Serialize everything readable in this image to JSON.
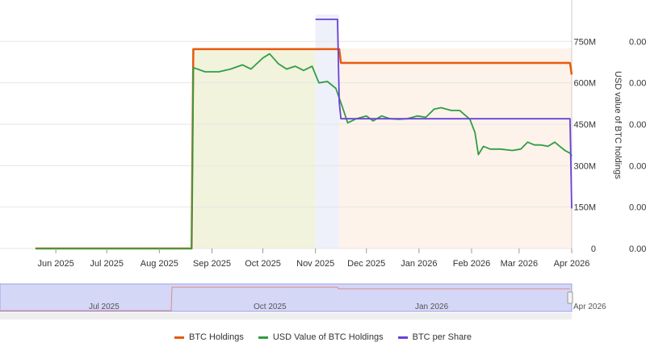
{
  "chart_data": {
    "type": "line",
    "x_ticks": [
      "Jun 2025",
      "Jul 2025",
      "Aug 2025",
      "Sep 2025",
      "Oct 2025",
      "Nov 2025",
      "Dec 2025",
      "Jan 2026",
      "Feb 2026",
      "Mar 2026",
      "Apr 2026"
    ],
    "left_axis_ticks": [],
    "usd_axis": {
      "label": "USD value of BTC holdings",
      "ticks": [
        "0",
        "150M",
        "300M",
        "450M",
        "600M",
        "750M"
      ],
      "ylim": [
        0,
        900
      ]
    },
    "btc_per_share_axis": {
      "ticks": [
        "0.00",
        "0.00",
        "0.00",
        "0.00",
        "0.00",
        "0.00"
      ]
    },
    "series": [
      {
        "name": "BTC Holdings",
        "color": "#e8590c",
        "points": [
          [
            "2025-05-20",
            0
          ],
          [
            "2025-08-20",
            0
          ],
          [
            "2025-08-21",
            722
          ],
          [
            "2025-11-15",
            722
          ],
          [
            "2025-11-16",
            672
          ],
          [
            "2026-03-31",
            672
          ],
          [
            "2026-04-01",
            630
          ]
        ]
      },
      {
        "name": "USD Value of BTC Holdings",
        "color": "#2f9e44",
        "points": [
          [
            "2025-05-20",
            0
          ],
          [
            "2025-08-20",
            0
          ],
          [
            "2025-08-21",
            655
          ],
          [
            "2025-08-28",
            640
          ],
          [
            "2025-09-05",
            640
          ],
          [
            "2025-09-12",
            650
          ],
          [
            "2025-09-19",
            665
          ],
          [
            "2025-09-24",
            650
          ],
          [
            "2025-10-01",
            690
          ],
          [
            "2025-10-05",
            705
          ],
          [
            "2025-10-10",
            670
          ],
          [
            "2025-10-15",
            650
          ],
          [
            "2025-10-20",
            660
          ],
          [
            "2025-10-25",
            645
          ],
          [
            "2025-10-30",
            660
          ],
          [
            "2025-11-03",
            600
          ],
          [
            "2025-11-08",
            605
          ],
          [
            "2025-11-13",
            580
          ],
          [
            "2025-11-17",
            510
          ],
          [
            "2025-11-20",
            455
          ],
          [
            "2025-11-25",
            470
          ],
          [
            "2025-12-01",
            480
          ],
          [
            "2025-12-05",
            462
          ],
          [
            "2025-12-10",
            480
          ],
          [
            "2025-12-15",
            470
          ],
          [
            "2025-12-20",
            468
          ],
          [
            "2025-12-25",
            470
          ],
          [
            "2025-12-31",
            480
          ],
          [
            "2026-01-05",
            475
          ],
          [
            "2026-01-10",
            505
          ],
          [
            "2026-01-14",
            510
          ],
          [
            "2026-01-20",
            500
          ],
          [
            "2026-01-25",
            500
          ],
          [
            "2026-01-31",
            468
          ],
          [
            "2026-02-03",
            420
          ],
          [
            "2026-02-05",
            340
          ],
          [
            "2026-02-08",
            370
          ],
          [
            "2026-02-12",
            360
          ],
          [
            "2026-02-18",
            360
          ],
          [
            "2026-02-25",
            355
          ],
          [
            "2026-03-02",
            360
          ],
          [
            "2026-03-06",
            385
          ],
          [
            "2026-03-10",
            375
          ],
          [
            "2026-03-14",
            375
          ],
          [
            "2026-03-18",
            370
          ],
          [
            "2026-03-22",
            385
          ],
          [
            "2026-03-25",
            370
          ],
          [
            "2026-03-28",
            355
          ],
          [
            "2026-03-31",
            345
          ],
          [
            "2026-04-01",
            335
          ]
        ]
      },
      {
        "name": "BTC per Share",
        "color": "#6741d9",
        "points": [
          [
            "2025-11-01",
            830
          ],
          [
            "2025-11-14",
            830
          ],
          [
            "2025-11-15",
            530
          ],
          [
            "2025-11-16",
            470
          ],
          [
            "2026-03-31",
            470
          ],
          [
            "2026-04-01",
            145
          ]
        ]
      }
    ],
    "regions": [
      {
        "from": "2025-08-21",
        "to": "2025-11-01",
        "color": "#f1f3dc"
      },
      {
        "from": "2025-11-01",
        "to": "2025-11-15",
        "color": "#eef0fa"
      },
      {
        "from": "2025-11-15",
        "to": "2026-04-01",
        "color": "#fdf3ea"
      }
    ],
    "navigator": {
      "ticks": [
        "Jul 2025",
        "Oct 2025",
        "Jan 2026",
        "Apr 2026"
      ]
    },
    "legend_position": "bottom-center",
    "grid": true
  }
}
